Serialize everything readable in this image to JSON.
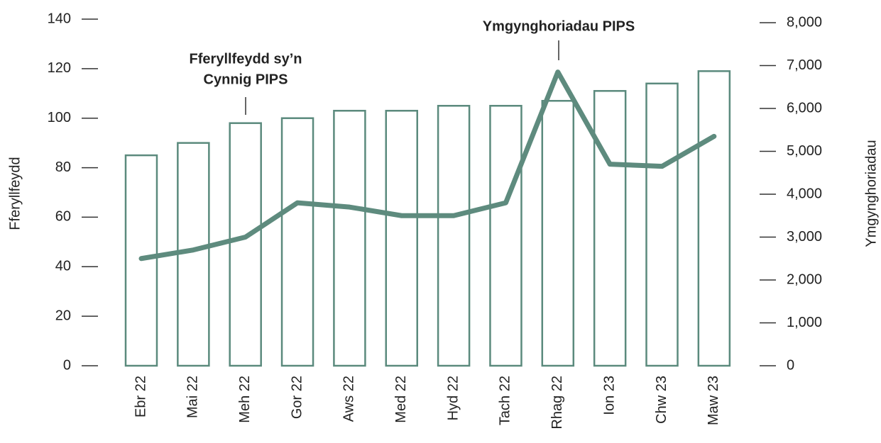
{
  "chart_data": {
    "type": "bar",
    "categories": [
      "Ebr 22",
      "Mai 22",
      "Meh 22",
      "Gor 22",
      "Aws 22",
      "Med 22",
      "Hyd 22",
      "Tach 22",
      "Rhag 22",
      "Ion 23",
      "Chw 23",
      "Maw 23"
    ],
    "series": [
      {
        "type": "bar",
        "color": "#5b8a7d",
        "values": [
          85,
          90,
          98,
          100,
          103,
          103,
          105,
          105,
          107,
          111,
          114,
          119
        ]
      },
      {
        "type": "line",
        "axis": "y2",
        "color": "#5e8b7e",
        "values": [
          2500,
          2700,
          3000,
          3800,
          3700,
          3500,
          3500,
          3800,
          6850,
          4700,
          4650,
          5350
        ]
      }
    ],
    "ylabel": "Fferyllfeydd",
    "y2label": "Ymgynghoriadau",
    "ylim": [
      0,
      140
    ],
    "yticks": [
      0,
      20,
      40,
      60,
      80,
      100,
      120,
      140
    ],
    "y2lim": [
      0,
      8000
    ],
    "y2ticks": [
      0,
      {
        "value": 1000,
        "label": "1,000"
      },
      {
        "value": 2000,
        "label": "2,000"
      },
      {
        "value": 3000,
        "label": "3,000"
      },
      {
        "value": 4000,
        "label": "4,000"
      },
      {
        "value": 5000,
        "label": "5,000"
      },
      {
        "value": 6000,
        "label": "6,000"
      },
      {
        "value": 7000,
        "label": "7,000"
      },
      {
        "value": 8000,
        "label": "8,000"
      }
    ],
    "annotations": [
      {
        "lines": [
          "Fferyllfeydd sy’n",
          "Cynnig PIPS"
        ]
      },
      {
        "lines": [
          "Ymgynghoriadau PIPS"
        ]
      }
    ]
  }
}
